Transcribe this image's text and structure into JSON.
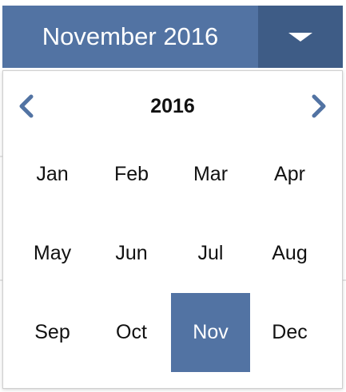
{
  "picker": {
    "value": "November 2016"
  },
  "calendar": {
    "year": "2016",
    "selected_month": "Nov",
    "months": [
      "Jan",
      "Feb",
      "Mar",
      "Apr",
      "May",
      "Jun",
      "Jul",
      "Aug",
      "Sep",
      "Oct",
      "Nov",
      "Dec"
    ]
  },
  "icons": {
    "prev": "chevron-left-icon",
    "next": "chevron-right-icon",
    "toggle": "caret-down-icon"
  },
  "colors": {
    "accent": "#5273a3",
    "accent_dark": "#3e5c86",
    "text": "#111111"
  }
}
